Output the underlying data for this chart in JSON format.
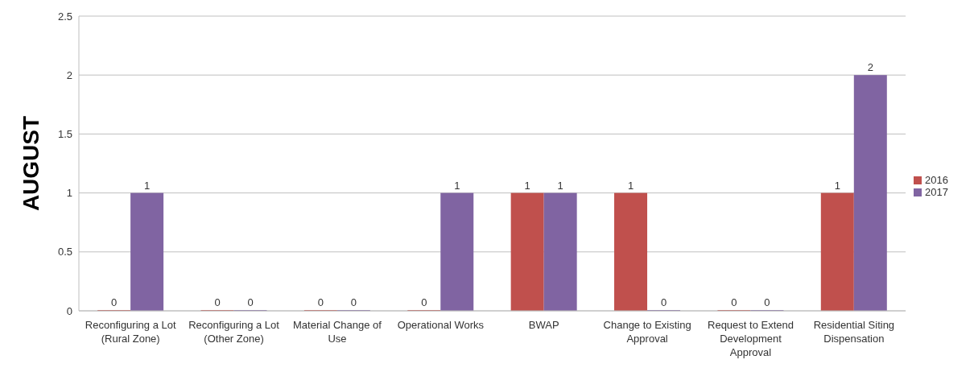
{
  "chart_data": {
    "type": "bar",
    "ylabel": "AUGUST",
    "categories": [
      "Reconfiguring a Lot (Rural Zone)",
      "Reconfiguring a Lot (Other Zone)",
      "Material Change of Use",
      "Operational Works",
      "BWAP",
      "Change to Existing Approval",
      "Request to Extend Development Approval",
      "Residential Siting Dispensation"
    ],
    "series": [
      {
        "name": "2016",
        "color": "#c0504d",
        "values": [
          0,
          0,
          0,
          0,
          1,
          1,
          0,
          1
        ]
      },
      {
        "name": "2017",
        "color": "#8064a2",
        "values": [
          1,
          0,
          0,
          1,
          1,
          0,
          0,
          2
        ]
      }
    ],
    "ylim": [
      0,
      2.5
    ],
    "yticks": [
      0,
      0.5,
      1,
      1.5,
      2,
      2.5
    ],
    "grid": "y",
    "legend": "right",
    "data_labels": true
  }
}
